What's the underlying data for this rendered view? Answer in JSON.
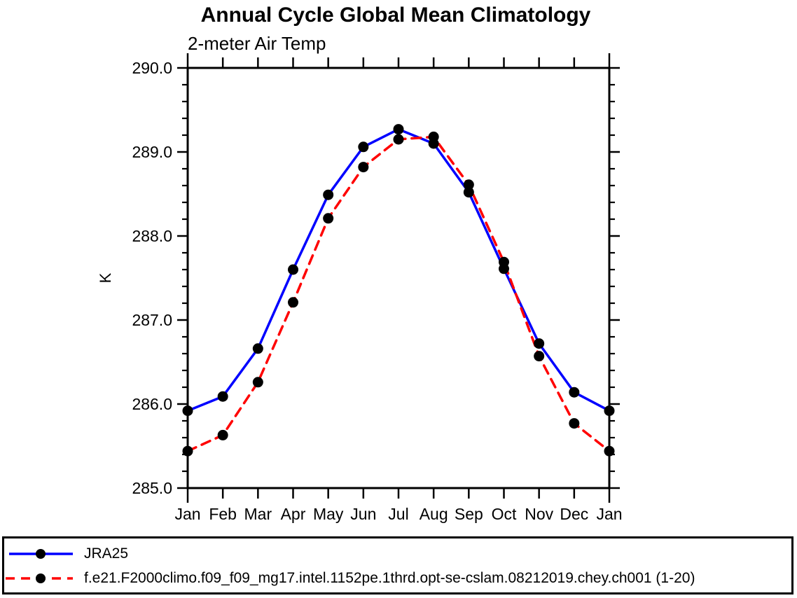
{
  "title": "Annual Cycle Global Mean Climatology",
  "subtitle": "2-meter Air Temp",
  "chart_data": {
    "type": "line",
    "categories": [
      "Jan",
      "Feb",
      "Mar",
      "Apr",
      "May",
      "Jun",
      "Jul",
      "Aug",
      "Sep",
      "Oct",
      "Nov",
      "Dec",
      "Jan"
    ],
    "series": [
      {
        "name": "JRA25",
        "color": "#0000ff",
        "line_style": "solid",
        "marker": "filled-circle",
        "marker_color": "#000000",
        "values": [
          285.92,
          286.09,
          286.66,
          287.6,
          288.49,
          289.06,
          289.27,
          289.1,
          288.52,
          287.61,
          286.72,
          286.14,
          285.92
        ]
      },
      {
        "name": "f.e21.F2000climo.f09_f09_mg17.intel.1152pe.1thrd.opt-se-cslam.08212019.chey.ch001 (1-20)",
        "color": "#ff0000",
        "line_style": "dashed",
        "marker": "filled-circle",
        "marker_color": "#000000",
        "values": [
          285.44,
          285.63,
          286.26,
          287.21,
          288.21,
          288.82,
          289.15,
          289.18,
          288.61,
          287.69,
          286.57,
          285.77,
          285.44
        ]
      }
    ],
    "xlabel": "",
    "ylabel": "K",
    "ylim": [
      285.0,
      290.0
    ],
    "y_major_ticks": [
      285.0,
      286.0,
      287.0,
      288.0,
      289.0,
      290.0
    ],
    "y_tick_labels": [
      "285.0",
      "286.0",
      "287.0",
      "288.0",
      "289.0",
      "290.0"
    ],
    "y_minor_step": 0.2,
    "grid": false,
    "legend_position": "bottom-left-box",
    "axis_color": "#000000"
  }
}
